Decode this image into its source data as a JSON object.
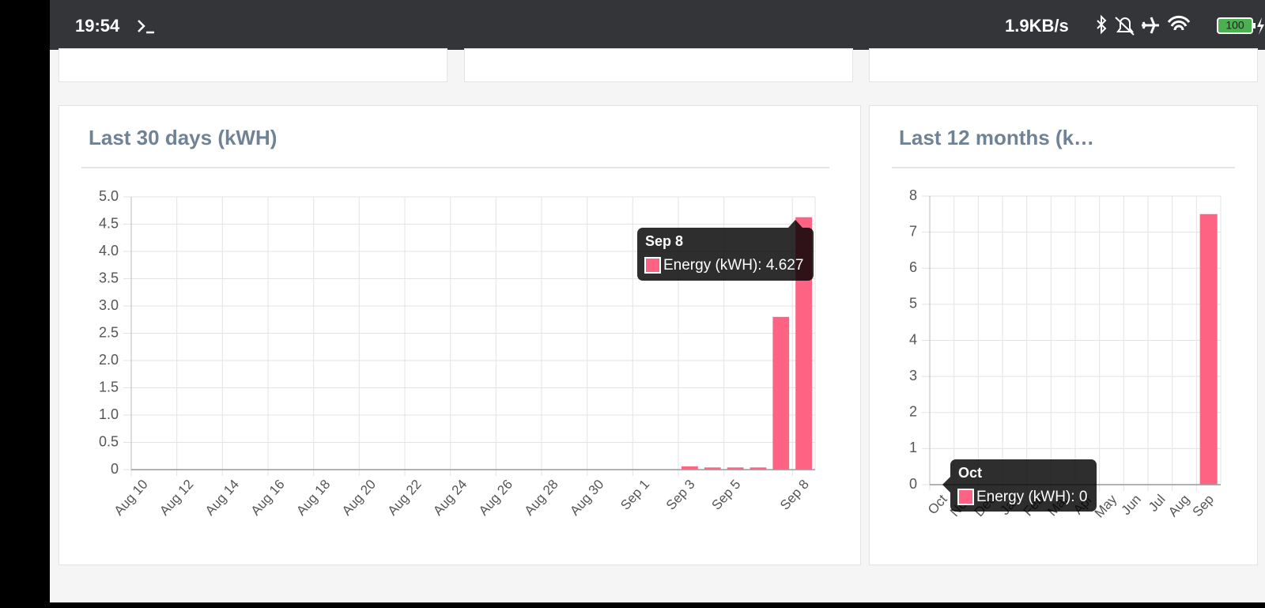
{
  "status_bar": {
    "time": "19:54",
    "network_speed": "1.9KB/s",
    "battery": "100"
  },
  "chart_data": [
    {
      "type": "bar",
      "title": "Last 30 days (kWH)",
      "color": "#ff6384",
      "grid": true,
      "categories": [
        "Aug 10",
        null,
        "Aug 12",
        null,
        "Aug 14",
        null,
        "Aug 16",
        null,
        "Aug 18",
        null,
        "Aug 20",
        null,
        "Aug 22",
        null,
        "Aug 24",
        null,
        "Aug 26",
        null,
        "Aug 28",
        null,
        "Aug 30",
        null,
        "Sep 1",
        null,
        "Sep 3",
        null,
        "Sep 5",
        null,
        null,
        "Sep 8"
      ],
      "values": [
        0,
        0,
        0,
        0,
        0,
        0,
        0,
        0,
        0,
        0,
        0,
        0,
        0,
        0,
        0,
        0,
        0,
        0,
        0,
        0,
        0,
        0,
        0,
        0,
        0.06,
        0.04,
        0.04,
        0.04,
        2.8,
        4.627
      ],
      "ylim": [
        0,
        5
      ],
      "yticks": [
        0,
        0.5,
        {
          "value": 1,
          "label": "1.0"
        },
        1.5,
        {
          "value": 2,
          "label": "2.0"
        },
        2.5,
        {
          "value": 3,
          "label": "3.0"
        },
        3.5,
        {
          "value": 4,
          "label": "4.0"
        },
        4.5,
        {
          "value": 5,
          "label": "5.0"
        }
      ],
      "tooltip": {
        "title": "Sep 8",
        "label": "Energy (kWH): 4.627"
      }
    },
    {
      "type": "bar",
      "title": "Last 12 months (k…",
      "color": "#ff6384",
      "grid": true,
      "categories": [
        "Oct",
        "Nov",
        "Dec",
        "Jan",
        "Feb",
        "Mar",
        "Apr",
        "May",
        "Jun",
        "Jul",
        "Aug",
        "Sep"
      ],
      "values": [
        0,
        0,
        0,
        0,
        0,
        0,
        0,
        0,
        0,
        0,
        0,
        7.5
      ],
      "ylim": [
        0,
        8
      ],
      "yticks": [
        0,
        1,
        2,
        3,
        4,
        5,
        6,
        7,
        8
      ],
      "tooltip": {
        "title": "Oct",
        "label": "Energy (kWH): 0"
      }
    }
  ]
}
